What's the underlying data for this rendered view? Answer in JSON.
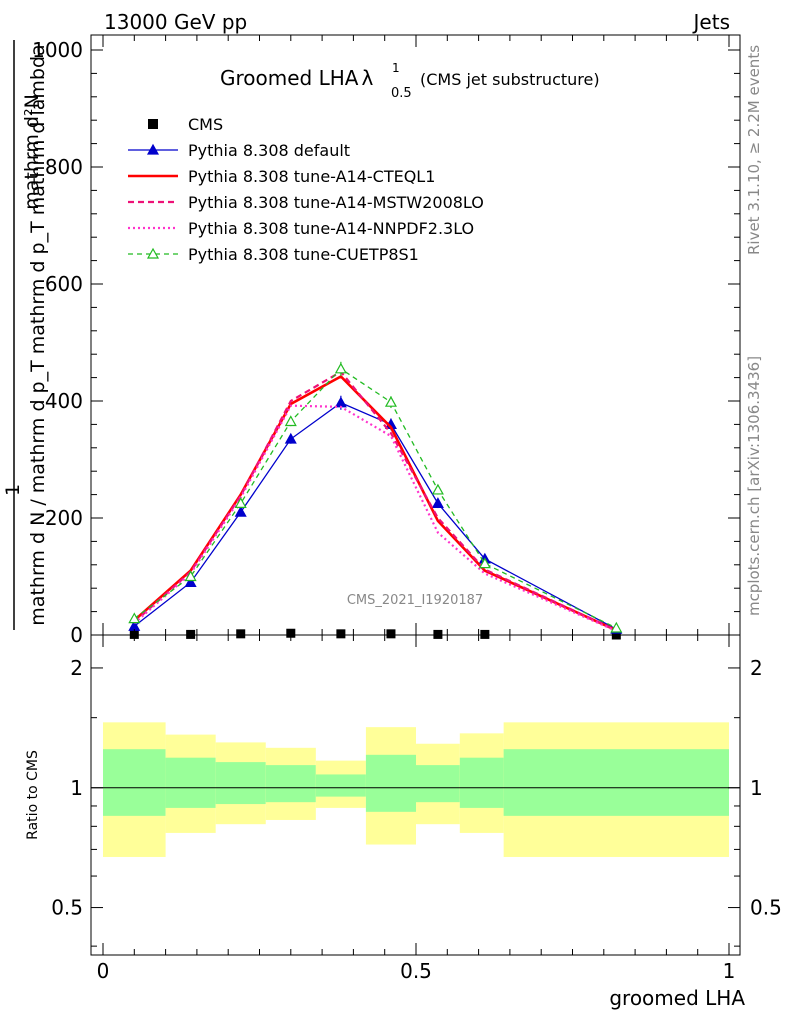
{
  "header": {
    "left": "13000 GeV pp",
    "right": "Jets"
  },
  "side": {
    "rivet": "Rivet 3.1.10, ≥ 2.2M events",
    "mcplots": "mcplots.cern.ch [arXiv:1306.3436]"
  },
  "chart_data": [
    {
      "type": "line",
      "title": "Groomed LHA",
      "title_symbol": "λ",
      "title_sup": "1",
      "title_sub": "0.5",
      "subtitle": "(CMS jet substructure)",
      "watermark": "CMS_2021_I1920187",
      "ylabel_num": "1",
      "ylabel_num_extra": "mathrm d²N",
      "ylabel_den": "mathrm d N / mathrm d p_T mathrm d p_T mathrm d lambda",
      "ylim": [
        0,
        1000
      ],
      "yticks": [
        0,
        200,
        400,
        600,
        800,
        1000
      ],
      "ytick_labels": [
        "0",
        "200",
        "400",
        "600",
        "800",
        "1000"
      ],
      "x": [
        0.05,
        0.14,
        0.22,
        0.3,
        0.38,
        0.46,
        0.535,
        0.61,
        0.82
      ],
      "series": [
        {
          "name": "CMS",
          "color": "#000000",
          "style": "data",
          "values": [
            1,
            1,
            2,
            3,
            2,
            2,
            1,
            1,
            0
          ]
        },
        {
          "name": "Pythia 8.308 default",
          "color": "#0000cc",
          "style": "solid-triangle",
          "values": [
            15,
            90,
            210,
            335,
            397,
            360,
            225,
            130,
            10
          ],
          "errors": [
            3,
            4,
            6,
            8,
            12,
            10,
            8,
            6,
            2
          ]
        },
        {
          "name": "Pythia 8.308 tune-A14-CTEQL1",
          "color": "#ff0000",
          "style": "solid-thick",
          "values": [
            25,
            110,
            240,
            395,
            442,
            355,
            195,
            110,
            8
          ]
        },
        {
          "name": "Pythia 8.308 tune-A14-MSTW2008LO",
          "color": "#ee1177",
          "style": "dashed",
          "values": [
            22,
            108,
            238,
            400,
            450,
            345,
            200,
            112,
            8
          ]
        },
        {
          "name": "Pythia 8.308 tune-A14-NNPDF2.3LO",
          "color": "#ff33cc",
          "style": "dotted",
          "values": [
            20,
            105,
            235,
            392,
            390,
            340,
            175,
            105,
            7
          ]
        },
        {
          "name": "Pythia 8.308 tune-CUETP8S1",
          "color": "#22bb22",
          "style": "dashed-triangle",
          "values": [
            28,
            100,
            225,
            365,
            455,
            398,
            248,
            122,
            12
          ],
          "errors": [
            3,
            4,
            6,
            8,
            12,
            10,
            8,
            6,
            2
          ]
        }
      ]
    },
    {
      "type": "area",
      "ylabel": "Ratio to CMS",
      "xlabel": "groomed LHA",
      "xlim": [
        0,
        1
      ],
      "xticks": [
        0,
        0.5,
        1
      ],
      "xtick_labels": [
        "0",
        "0.5",
        "1"
      ],
      "ylim": [
        0.38,
        2.42
      ],
      "yticks": [
        0.5,
        1,
        2
      ],
      "ytick_labels": [
        "0.5",
        "1",
        "2"
      ],
      "bins": [
        {
          "lo": 0.0,
          "hi": 0.1,
          "g_lo": 0.85,
          "g_hi": 1.25,
          "y_lo": 0.67,
          "y_hi": 1.46
        },
        {
          "lo": 0.1,
          "hi": 0.18,
          "g_lo": 0.89,
          "g_hi": 1.19,
          "y_lo": 0.77,
          "y_hi": 1.36
        },
        {
          "lo": 0.18,
          "hi": 0.26,
          "g_lo": 0.91,
          "g_hi": 1.16,
          "y_lo": 0.81,
          "y_hi": 1.3
        },
        {
          "lo": 0.26,
          "hi": 0.34,
          "g_lo": 0.92,
          "g_hi": 1.14,
          "y_lo": 0.83,
          "y_hi": 1.26
        },
        {
          "lo": 0.34,
          "hi": 0.42,
          "g_lo": 0.95,
          "g_hi": 1.08,
          "y_lo": 0.89,
          "y_hi": 1.17
        },
        {
          "lo": 0.42,
          "hi": 0.5,
          "g_lo": 0.87,
          "g_hi": 1.21,
          "y_lo": 0.72,
          "y_hi": 1.42
        },
        {
          "lo": 0.5,
          "hi": 0.57,
          "g_lo": 0.92,
          "g_hi": 1.14,
          "y_lo": 0.81,
          "y_hi": 1.29
        },
        {
          "lo": 0.57,
          "hi": 0.64,
          "g_lo": 0.89,
          "g_hi": 1.19,
          "y_lo": 0.77,
          "y_hi": 1.37
        },
        {
          "lo": 0.64,
          "hi": 1.0,
          "g_lo": 0.85,
          "g_hi": 1.25,
          "y_lo": 0.67,
          "y_hi": 1.46
        }
      ],
      "green": "#99ff99",
      "yellow": "#ffff99"
    }
  ]
}
